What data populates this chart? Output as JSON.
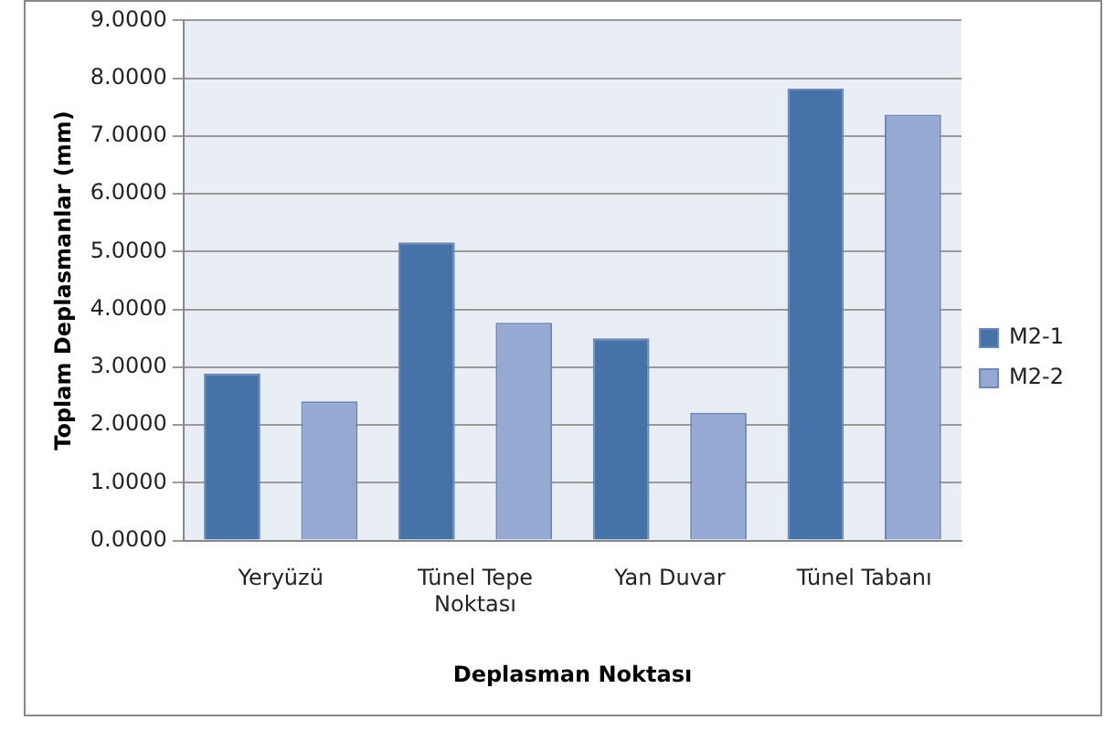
{
  "chart_data": {
    "type": "bar",
    "xlabel": "Deplasman Noktası",
    "ylabel": "Toplam Deplasmanlar (mm)",
    "categories": [
      "Yeryüzü",
      "Tünel Tepe Noktası",
      "Yan Duvar",
      "Tünel Tabanı"
    ],
    "series": [
      {
        "name": "M2-1",
        "color": "#4572a7",
        "values": [
          2.89,
          5.16,
          3.5,
          7.82
        ]
      },
      {
        "name": "M2-2",
        "color": "#95a9d2",
        "values": [
          2.41,
          3.77,
          2.21,
          7.37
        ]
      }
    ],
    "ylim": [
      0,
      9
    ],
    "yticks": [
      {
        "value": 0,
        "label": "0.0000"
      },
      {
        "value": 1,
        "label": "1.0000"
      },
      {
        "value": 2,
        "label": "2.0000"
      },
      {
        "value": 3,
        "label": "3.0000"
      },
      {
        "value": 4,
        "label": "4.0000"
      },
      {
        "value": 5,
        "label": "5.0000"
      },
      {
        "value": 6,
        "label": "6.0000"
      },
      {
        "value": 7,
        "label": "7.0000"
      },
      {
        "value": 8,
        "label": "8.0000"
      },
      {
        "value": 9,
        "label": "9.0000"
      }
    ],
    "grid": "y",
    "legend": "right"
  }
}
